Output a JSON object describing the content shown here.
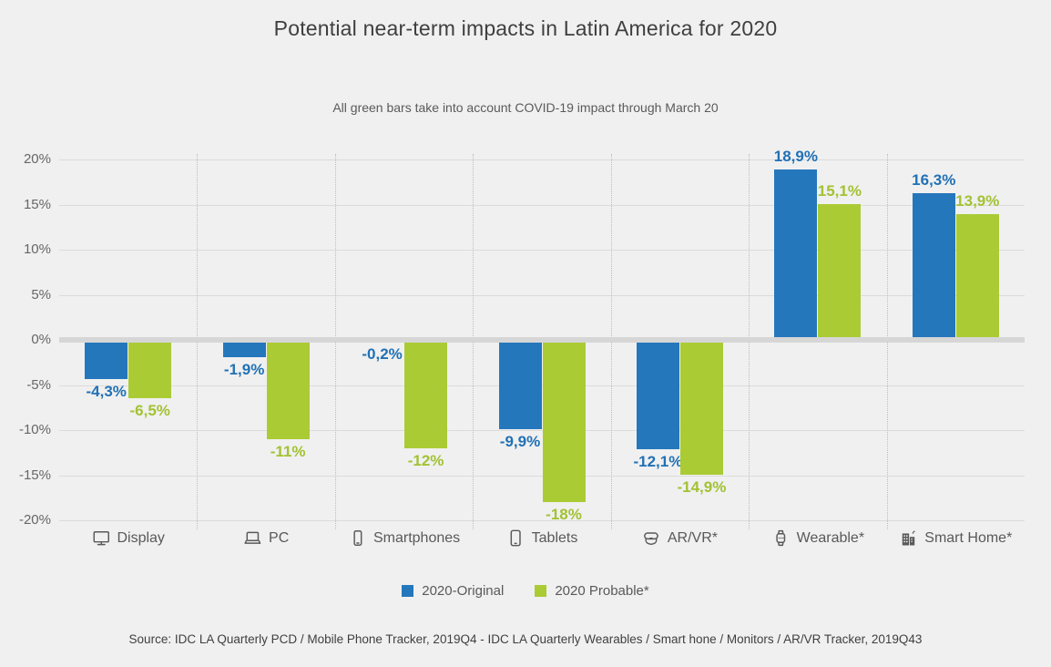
{
  "page": {
    "title": "Potential near-term impacts in Latin America for 2020",
    "subtitle": "All green bars take into account COVID-19 impact through March 20",
    "source": "Source: IDC LA Quarterly PCD / Mobile Phone Tracker, 2019Q4 - IDC LA Quarterly Wearables / Smart hone / Monitors / AR/VR Tracker, 2019Q43"
  },
  "chart_data": {
    "type": "bar",
    "title": "Potential near-term impacts in Latin America for 2020",
    "subtitle": "All green bars take into account COVID-19 impact through March 20",
    "categories": [
      "Display",
      "PC",
      "Smartphones",
      "Tablets",
      "AR/VR*",
      "Wearable*",
      "Smart Home*"
    ],
    "category_icons": [
      "display-icon",
      "pc-icon",
      "smartphone-icon",
      "tablet-icon",
      "arvr-icon",
      "wearable-icon",
      "smart-home-icon"
    ],
    "series": [
      {
        "name": "2020-Original",
        "color": "#2577BC",
        "label_color": "#2171B5",
        "values": [
          -4.3,
          -1.9,
          -0.2,
          -9.9,
          -12.1,
          18.9,
          16.3
        ],
        "labels": [
          "-4,3%",
          "-1,9%",
          "-0,2%",
          "-9,9%",
          "-12,1%",
          "18,9%",
          "16,3%"
        ]
      },
      {
        "name": "2020 Probable*",
        "color": "#ABCB35",
        "label_color": "#A2C233",
        "values": [
          -6.5,
          -11,
          -12,
          -18,
          -14.9,
          15.1,
          13.9
        ],
        "labels": [
          "-6,5%",
          "-11%",
          "-12%",
          "-18%",
          "-14,9%",
          "15,1%",
          "13,9%"
        ]
      }
    ],
    "ylim": [
      -20,
      20
    ],
    "ytick_step": 5,
    "ytick_labels": [
      "20%",
      "15%",
      "10%",
      "5%",
      "0%",
      "-5%",
      "-10%",
      "-15%",
      "-20%"
    ],
    "grid": true,
    "legend_position": "bottom"
  }
}
